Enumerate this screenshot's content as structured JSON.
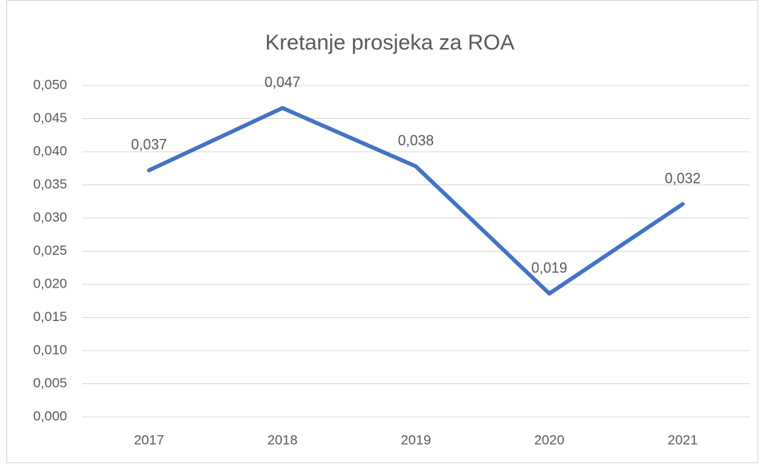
{
  "chart_data": {
    "type": "line",
    "title": "Kretanje prosjeka za ROA",
    "categories": [
      "2017",
      "2018",
      "2019",
      "2020",
      "2021"
    ],
    "series": [
      {
        "name": "ROA",
        "color": "#4472c4",
        "values": [
          0.0372,
          0.0466,
          0.0378,
          0.0186,
          0.0321
        ],
        "value_labels": [
          "0,037",
          "0,047",
          "0,038",
          "0,019",
          "0,032"
        ]
      }
    ],
    "ylim": [
      0,
      0.05
    ],
    "yticks": [
      {
        "value": 0,
        "label": "0,000"
      },
      {
        "value": 0.005,
        "label": "0,005"
      },
      {
        "value": 0.01,
        "label": "0,010"
      },
      {
        "value": 0.015,
        "label": "0,015"
      },
      {
        "value": 0.02,
        "label": "0,020"
      },
      {
        "value": 0.025,
        "label": "0,025"
      },
      {
        "value": 0.03,
        "label": "0,030"
      },
      {
        "value": 0.035,
        "label": "0,035"
      },
      {
        "value": 0.04,
        "label": "0,040"
      },
      {
        "value": 0.045,
        "label": "0,045"
      },
      {
        "value": 0.05,
        "label": "0,050"
      }
    ],
    "grid": true
  }
}
